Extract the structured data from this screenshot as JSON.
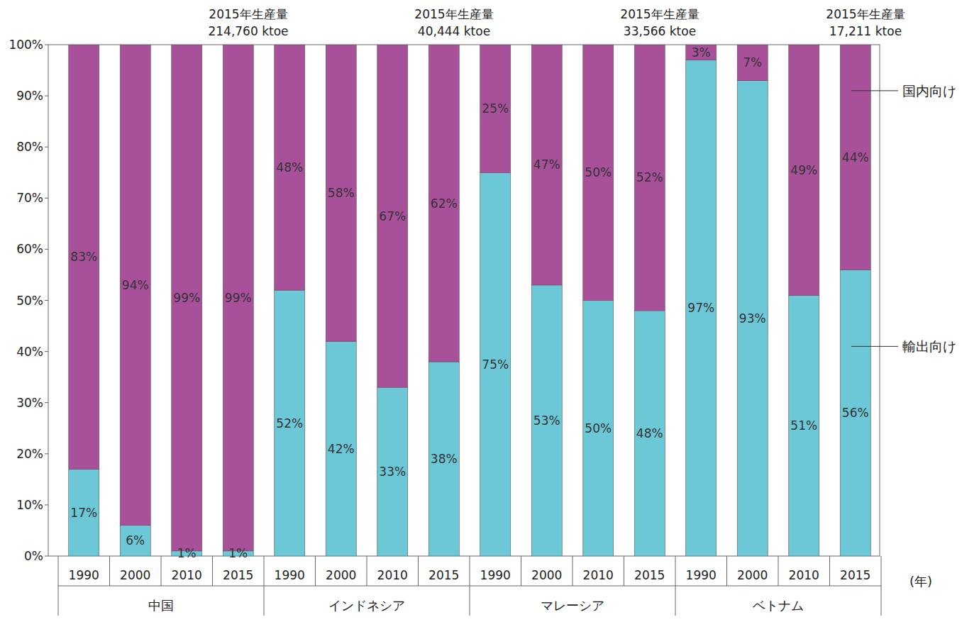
{
  "chart_data": {
    "type": "bar",
    "stacked": true,
    "data_labels": true,
    "grid": false,
    "legend": "right",
    "x_label": "(年)",
    "categories": [
      "1990",
      "2000",
      "2010",
      "2015",
      "1990",
      "2000",
      "2010",
      "2015",
      "1990",
      "2000",
      "2010",
      "2015",
      "1990",
      "2000",
      "2010",
      "2015"
    ],
    "groups": [
      {
        "label": "中国",
        "annotation": [
          "2015年生産量",
          "214,760 ktoe"
        ]
      },
      {
        "label": "インドネシア",
        "annotation": [
          "2015年生産量",
          "40,444 ktoe"
        ]
      },
      {
        "label": "マレーシア",
        "annotation": [
          "2015年生産量",
          "33,566 ktoe"
        ]
      },
      {
        "label": "ベトナム",
        "annotation": [
          "2015年生産量",
          "17,211 ktoe"
        ]
      }
    ],
    "series": [
      {
        "name": "輸出向け",
        "color": "#6cc8d6",
        "values": [
          17,
          6,
          1,
          1,
          52,
          42,
          33,
          38,
          75,
          53,
          50,
          48,
          97,
          93,
          51,
          56
        ],
        "value_labels": [
          "17%",
          "6%",
          "1%",
          "1%",
          "52%",
          "42%",
          "33%",
          "38%",
          "75%",
          "53%",
          "50%",
          "48%",
          "97%",
          "93%",
          "51%",
          "56%"
        ]
      },
      {
        "name": "国内向け",
        "color": "#a8519a",
        "values": [
          83,
          94,
          99,
          99,
          48,
          58,
          67,
          62,
          25,
          47,
          50,
          52,
          3,
          7,
          49,
          44
        ],
        "value_labels": [
          "83%",
          "94%",
          "99%",
          "99%",
          "48%",
          "58%",
          "67%",
          "62%",
          "25%",
          "47%",
          "50%",
          "52%",
          "3%",
          "7%",
          "49%",
          "44%"
        ]
      }
    ],
    "ylim": [
      0,
      100
    ],
    "yticks": [
      {
        "value": 0,
        "label": "0%"
      },
      {
        "value": 10,
        "label": "10%"
      },
      {
        "value": 20,
        "label": "20%"
      },
      {
        "value": 30,
        "label": "30%"
      },
      {
        "value": 40,
        "label": "40%"
      },
      {
        "value": 50,
        "label": "50%"
      },
      {
        "value": 60,
        "label": "60%"
      },
      {
        "value": 70,
        "label": "70%"
      },
      {
        "value": 80,
        "label": "80%"
      },
      {
        "value": 90,
        "label": "90%"
      },
      {
        "value": 100,
        "label": "100%"
      }
    ]
  }
}
